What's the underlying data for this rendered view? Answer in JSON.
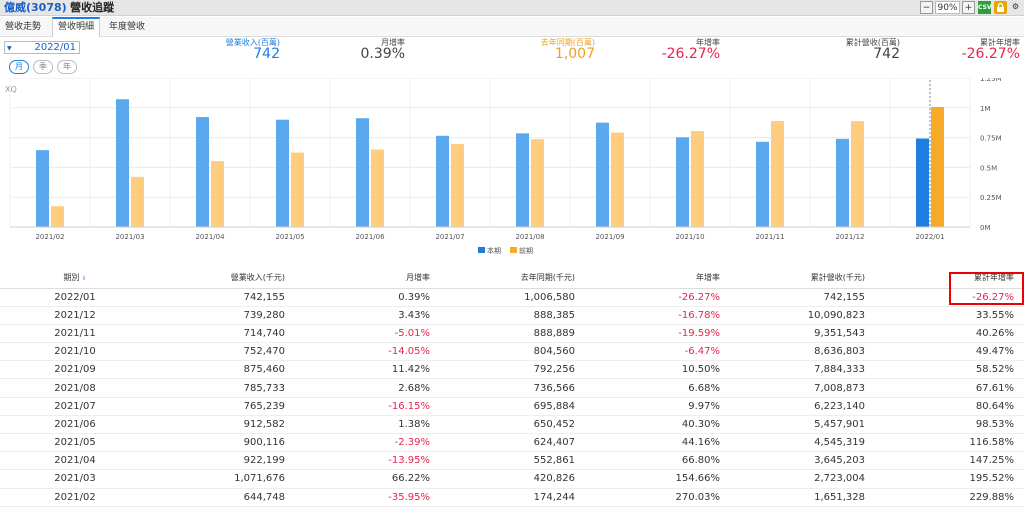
{
  "window": {
    "stock": "億威(3078)",
    "title": "營收追蹤",
    "zoom": "90%",
    "zoom_minus": "−",
    "zoom_plus": "+",
    "csv": "CSV"
  },
  "tabs": [
    {
      "label": "營收走勢"
    },
    {
      "label": "營收明細"
    },
    {
      "label": "年度營收"
    }
  ],
  "date_select": {
    "value": "2022/01"
  },
  "period_buttons": [
    {
      "label": "月"
    },
    {
      "label": "季"
    },
    {
      "label": "年"
    }
  ],
  "watermark": "XQ",
  "stats": {
    "revenue_label": "營業收入(百萬)",
    "revenue_value": "742",
    "mom_label": "月增率",
    "mom_value": "0.39%",
    "ly_label": "去年同期(百萬)",
    "ly_value": "1,007",
    "yoy_label": "年增率",
    "yoy_value": "-26.27%",
    "cum_label": "累計營收(百萬)",
    "cum_value": "742",
    "cumyoy_label": "累計年增率",
    "cumyoy_value": "-26.27%"
  },
  "chart_data": {
    "type": "bar",
    "categories": [
      "2021/02",
      "2021/03",
      "2021/04",
      "2021/05",
      "2021/06",
      "2021/07",
      "2021/08",
      "2021/09",
      "2021/10",
      "2021/11",
      "2021/12",
      "2022/01"
    ],
    "series": [
      {
        "name": "本期",
        "color": "#5aa9ee",
        "values": [
          644748,
          1071676,
          922199,
          900116,
          912582,
          765239,
          785733,
          875460,
          752470,
          714740,
          739280,
          742155
        ]
      },
      {
        "name": "前期",
        "color": "#ffcc80",
        "values": [
          174244,
          420826,
          552861,
          624407,
          650452,
          695884,
          736566,
          792256,
          804560,
          888889,
          888385,
          1006580
        ]
      }
    ],
    "highlight_color": "#1e7de0",
    "highlight_prior_color": "#f7a928",
    "y_ticks": [
      "0M",
      "0.25M",
      "0.5M",
      "0.75M",
      "1M",
      "1.25M"
    ],
    "ylim": [
      0,
      1250000
    ]
  },
  "table": {
    "headers": [
      "期別",
      "營業收入(千元)",
      "月增率",
      "去年同期(千元)",
      "年增率",
      "累計營收(千元)",
      "累計年增率"
    ],
    "sort_icon": "⇩",
    "rows": [
      [
        "2022/01",
        "742,155",
        "0.39%",
        "1,006,580",
        "-26.27%",
        "742,155",
        "-26.27%"
      ],
      [
        "2021/12",
        "739,280",
        "3.43%",
        "888,385",
        "-16.78%",
        "10,090,823",
        "33.55%"
      ],
      [
        "2021/11",
        "714,740",
        "-5.01%",
        "888,889",
        "-19.59%",
        "9,351,543",
        "40.26%"
      ],
      [
        "2021/10",
        "752,470",
        "-14.05%",
        "804,560",
        "-6.47%",
        "8,636,803",
        "49.47%"
      ],
      [
        "2021/09",
        "875,460",
        "11.42%",
        "792,256",
        "10.50%",
        "7,884,333",
        "58.52%"
      ],
      [
        "2021/08",
        "785,733",
        "2.68%",
        "736,566",
        "6.68%",
        "7,008,873",
        "67.61%"
      ],
      [
        "2021/07",
        "765,239",
        "-16.15%",
        "695,884",
        "9.97%",
        "6,223,140",
        "80.64%"
      ],
      [
        "2021/06",
        "912,582",
        "1.38%",
        "650,452",
        "40.30%",
        "5,457,901",
        "98.53%"
      ],
      [
        "2021/05",
        "900,116",
        "-2.39%",
        "624,407",
        "44.16%",
        "4,545,319",
        "116.58%"
      ],
      [
        "2021/04",
        "922,199",
        "-13.95%",
        "552,861",
        "66.80%",
        "3,645,203",
        "147.25%"
      ],
      [
        "2021/03",
        "1,071,676",
        "66.22%",
        "420,826",
        "154.66%",
        "2,723,004",
        "195.52%"
      ],
      [
        "2021/02",
        "644,748",
        "-35.95%",
        "174,244",
        "270.03%",
        "1,651,328",
        "229.88%"
      ]
    ]
  }
}
